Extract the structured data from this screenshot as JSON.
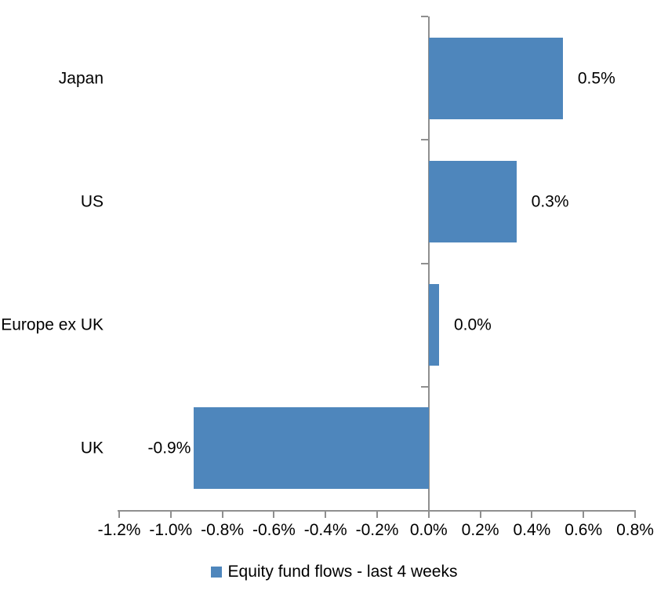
{
  "chart_data": {
    "type": "bar",
    "orientation": "horizontal",
    "title": "",
    "categories": [
      "Japan",
      "US",
      "Europe ex UK",
      "UK"
    ],
    "values": [
      0.5,
      0.3,
      0.0,
      -0.9
    ],
    "value_labels": [
      "0.5%",
      "0.3%",
      "0.0%",
      "-0.9%"
    ],
    "bar_extents": [
      0.52,
      0.34,
      0.04,
      -0.91
    ],
    "xlim": [
      -1.2,
      0.8
    ],
    "xticks": [
      -1.2,
      -1.0,
      -0.8,
      -0.6,
      -0.4,
      -0.2,
      0.0,
      0.2,
      0.4,
      0.6,
      0.8
    ],
    "xtick_labels": [
      "-1.2%",
      "-1.0%",
      "-0.8%",
      "-0.6%",
      "-0.4%",
      "-0.2%",
      "0.0%",
      "0.2%",
      "0.4%",
      "0.6%",
      "0.8%"
    ],
    "grid": false,
    "legend": {
      "position": "bottom",
      "items": [
        {
          "label": "Equity fund flows - last 4 weeks",
          "swatch": "#4E86BC"
        }
      ]
    },
    "colors": {
      "bar": "#4E86BC",
      "axis": "#8F8F8F",
      "text": "#000000",
      "background": "#FFFFFF"
    }
  }
}
